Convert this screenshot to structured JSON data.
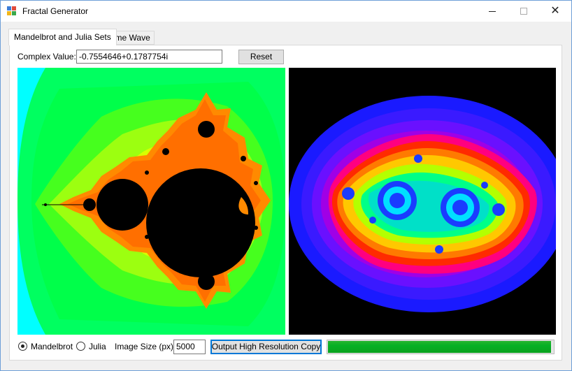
{
  "window": {
    "title": "Fractal Generator",
    "close_glyph": "✕"
  },
  "tabs": [
    {
      "label": "Mandelbrot and Julia Sets",
      "active": true
    },
    {
      "label": "Time Wave",
      "active": false
    }
  ],
  "complex": {
    "label": "Complex Value:",
    "value": "-0.7554646+0.1787754i"
  },
  "reset_label": "Reset",
  "images": {
    "mandelbrot": "mandelbrot-set-render",
    "julia": "julia-set-render"
  },
  "options": {
    "mandelbrot_label": "Mandelbrot",
    "julia_label": "Julia",
    "selected": "Mandelbrot",
    "image_size_label": "Image Size (px):",
    "image_size_value": "5000",
    "output_label": "Output High Resolution Copy",
    "progress_fraction": 0.99
  },
  "colors": {
    "progress": "#06b025",
    "accent": "#0078d7",
    "titlebar_border": "#6e9fd8"
  }
}
